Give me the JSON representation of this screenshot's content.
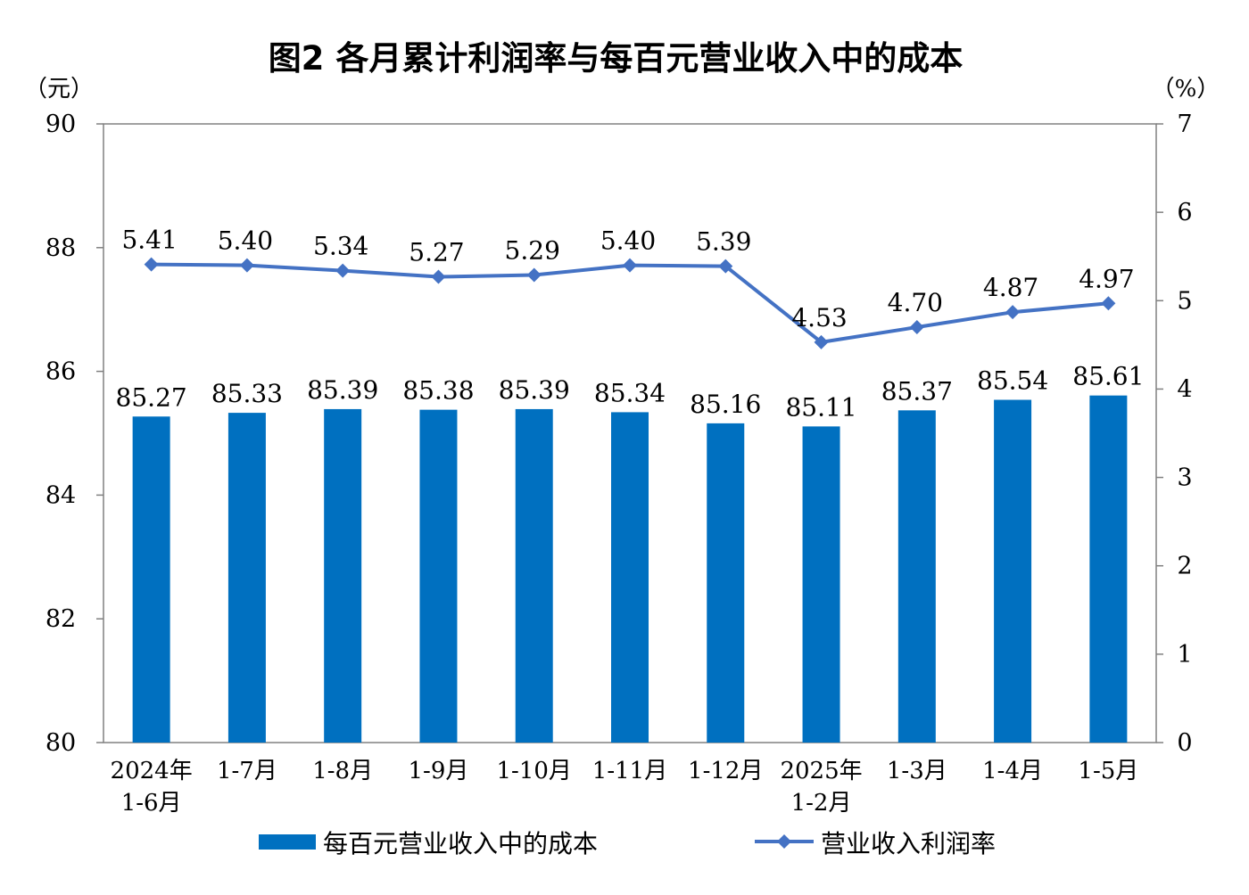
{
  "colors": {
    "bar": "#0070C0",
    "line": "#4472C4",
    "axis": "#808080",
    "text": "#000000"
  },
  "chart_data": {
    "type": "bar",
    "title": "图2  各月累计利润率与每百元营业收入中的成本",
    "y_left_unit": "（元）",
    "y_right_unit": "（%）",
    "categories": [
      [
        "2024年",
        "1-6月"
      ],
      [
        "1-7月"
      ],
      [
        "1-8月"
      ],
      [
        "1-9月"
      ],
      [
        "1-10月"
      ],
      [
        "1-11月"
      ],
      [
        "1-12月"
      ],
      [
        "2025年",
        "1-2月"
      ],
      [
        "1-3月"
      ],
      [
        "1-4月"
      ],
      [
        "1-5月"
      ]
    ],
    "series": [
      {
        "name": "每百元营业收入中的成本",
        "type": "bar",
        "axis": "left",
        "values": [
          85.27,
          85.33,
          85.39,
          85.38,
          85.39,
          85.34,
          85.16,
          85.11,
          85.37,
          85.54,
          85.61
        ],
        "labels": [
          "85.27",
          "85.33",
          "85.39",
          "85.38",
          "85.39",
          "85.34",
          "85.16",
          "85.11",
          "85.37",
          "85.54",
          "85.61"
        ]
      },
      {
        "name": "营业收入利润率",
        "type": "line",
        "marker": "diamond",
        "axis": "right",
        "values": [
          5.41,
          5.4,
          5.34,
          5.27,
          5.29,
          5.4,
          5.39,
          4.53,
          4.7,
          4.87,
          4.97
        ],
        "labels": [
          "5.41",
          "5.40",
          "5.34",
          "5.27",
          "5.29",
          "5.40",
          "5.39",
          "4.53",
          "4.70",
          "4.87",
          "4.97"
        ]
      }
    ],
    "y_left": {
      "range": [
        80,
        90
      ],
      "ticks": [
        "80",
        "82",
        "84",
        "86",
        "88",
        "90"
      ]
    },
    "y_right": {
      "range": [
        0,
        7
      ],
      "ticks": [
        "0",
        "1",
        "2",
        "3",
        "4",
        "5",
        "6",
        "7"
      ]
    },
    "grid": false,
    "legend_position": "bottom"
  }
}
